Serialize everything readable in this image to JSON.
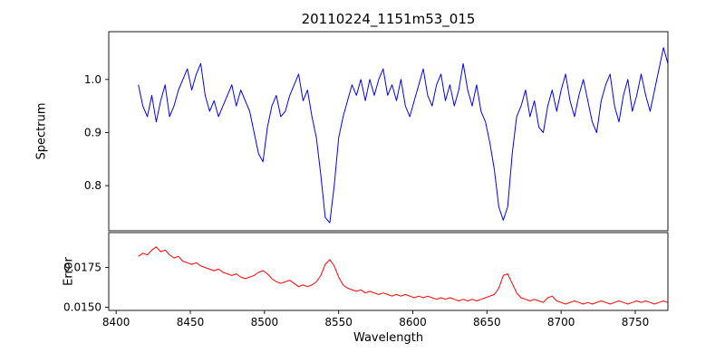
{
  "figure": {
    "background": "#ffffff",
    "spine_color": "#000000",
    "text_color": "#000000"
  },
  "chart_data": {
    "type": "line",
    "title": "20110224_1151m53_015",
    "xlabel": "Wavelength",
    "legend": "none",
    "grid": false,
    "xlim": [
      8395,
      8772
    ],
    "xticks": [
      8400,
      8450,
      8500,
      8550,
      8600,
      8650,
      8700,
      8750
    ],
    "xtick_labels": [
      "8400",
      "8450",
      "8500",
      "8550",
      "8600",
      "8650",
      "8700",
      "8750"
    ],
    "x": [
      8415,
      8418,
      8421,
      8424,
      8427,
      8430,
      8433,
      8436,
      8439,
      8442,
      8445,
      8448,
      8451,
      8454,
      8457,
      8460,
      8463,
      8466,
      8469,
      8472,
      8475,
      8478,
      8481,
      8484,
      8487,
      8490,
      8493,
      8496,
      8499,
      8502,
      8505,
      8508,
      8511,
      8514,
      8517,
      8520,
      8523,
      8526,
      8529,
      8532,
      8535,
      8538,
      8541,
      8544,
      8547,
      8550,
      8553,
      8556,
      8559,
      8562,
      8565,
      8568,
      8571,
      8574,
      8577,
      8580,
      8583,
      8586,
      8589,
      8592,
      8595,
      8598,
      8601,
      8604,
      8607,
      8610,
      8613,
      8616,
      8619,
      8622,
      8625,
      8628,
      8631,
      8634,
      8637,
      8640,
      8643,
      8646,
      8649,
      8652,
      8655,
      8658,
      8661,
      8664,
      8667,
      8670,
      8673,
      8676,
      8679,
      8682,
      8685,
      8688,
      8691,
      8694,
      8697,
      8700,
      8703,
      8706,
      8709,
      8712,
      8715,
      8718,
      8721,
      8724,
      8727,
      8730,
      8733,
      8736,
      8739,
      8742,
      8745,
      8748,
      8751,
      8754,
      8757,
      8760,
      8763,
      8766,
      8769,
      8772
    ],
    "subplots": [
      {
        "name": "spectrum",
        "ylabel": "Spectrum",
        "line_color": "#0000ff",
        "ylim": [
          0.715,
          1.09
        ],
        "yticks": [
          0.8,
          0.9,
          1.0
        ],
        "ytick_labels": [
          "0.8",
          "0.9",
          "1.0"
        ],
        "features": "absorption dips near 8499, 8542 and 8662 (Ca II triplet)",
        "y": [
          0.99,
          0.95,
          0.93,
          0.97,
          0.92,
          0.96,
          0.99,
          0.93,
          0.95,
          0.98,
          1.0,
          1.02,
          0.98,
          1.01,
          1.03,
          0.97,
          0.94,
          0.96,
          0.93,
          0.95,
          0.97,
          0.99,
          0.95,
          0.98,
          0.96,
          0.94,
          0.9,
          0.86,
          0.845,
          0.91,
          0.95,
          0.97,
          0.93,
          0.94,
          0.97,
          0.99,
          1.01,
          0.96,
          0.98,
          0.93,
          0.89,
          0.82,
          0.74,
          0.73,
          0.8,
          0.89,
          0.93,
          0.96,
          0.99,
          0.97,
          1.0,
          0.96,
          1.0,
          0.97,
          1.0,
          1.02,
          0.97,
          0.99,
          0.96,
          1.0,
          0.95,
          0.93,
          0.96,
          0.99,
          1.02,
          0.97,
          0.95,
          0.99,
          1.01,
          0.96,
          0.99,
          0.95,
          0.98,
          1.03,
          0.98,
          0.95,
          0.99,
          0.94,
          0.92,
          0.88,
          0.83,
          0.76,
          0.735,
          0.76,
          0.86,
          0.93,
          0.95,
          0.98,
          0.93,
          0.96,
          0.91,
          0.9,
          0.95,
          0.98,
          0.94,
          0.98,
          1.01,
          0.96,
          0.93,
          0.97,
          1.0,
          0.96,
          0.92,
          0.9,
          0.96,
          0.99,
          1.01,
          0.95,
          0.92,
          0.97,
          1.0,
          0.94,
          0.97,
          1.01,
          0.97,
          0.94,
          0.98,
          1.02,
          1.06,
          1.03
        ]
      },
      {
        "name": "error",
        "ylabel": "Error",
        "line_color": "#ff0000",
        "ylim": [
          0.0148,
          0.0197
        ],
        "yticks": [
          0.015,
          0.0175
        ],
        "ytick_labels": [
          "0.0150",
          "0.0175"
        ],
        "features": "declining error level with bumps near 8542 and 8662",
        "y": [
          0.0182,
          0.0184,
          0.0183,
          0.0186,
          0.0188,
          0.0185,
          0.0186,
          0.0183,
          0.0181,
          0.0182,
          0.0179,
          0.0178,
          0.0177,
          0.0178,
          0.0176,
          0.0175,
          0.0174,
          0.0173,
          0.0174,
          0.0172,
          0.0171,
          0.017,
          0.0171,
          0.0169,
          0.0168,
          0.0169,
          0.017,
          0.0172,
          0.0173,
          0.0171,
          0.0168,
          0.0166,
          0.0165,
          0.0166,
          0.0167,
          0.0165,
          0.0163,
          0.0164,
          0.0163,
          0.0164,
          0.0166,
          0.017,
          0.0177,
          0.018,
          0.0176,
          0.0169,
          0.0164,
          0.0162,
          0.0161,
          0.016,
          0.0161,
          0.0159,
          0.016,
          0.0159,
          0.0158,
          0.0159,
          0.0158,
          0.0157,
          0.0158,
          0.0157,
          0.0158,
          0.0157,
          0.0156,
          0.0157,
          0.0156,
          0.0157,
          0.0156,
          0.0155,
          0.0156,
          0.0155,
          0.0156,
          0.0155,
          0.0154,
          0.0155,
          0.0154,
          0.0155,
          0.0154,
          0.0155,
          0.0156,
          0.0157,
          0.0158,
          0.0162,
          0.017,
          0.0171,
          0.0165,
          0.0159,
          0.0156,
          0.0155,
          0.0154,
          0.0155,
          0.0154,
          0.0153,
          0.0156,
          0.0157,
          0.0154,
          0.0153,
          0.0152,
          0.0153,
          0.0154,
          0.0153,
          0.0152,
          0.0153,
          0.0152,
          0.0153,
          0.0154,
          0.0153,
          0.0152,
          0.0153,
          0.0154,
          0.0153,
          0.0152,
          0.0153,
          0.0154,
          0.0153,
          0.0154,
          0.0153,
          0.0152,
          0.0153,
          0.0154,
          0.0153
        ]
      }
    ]
  }
}
